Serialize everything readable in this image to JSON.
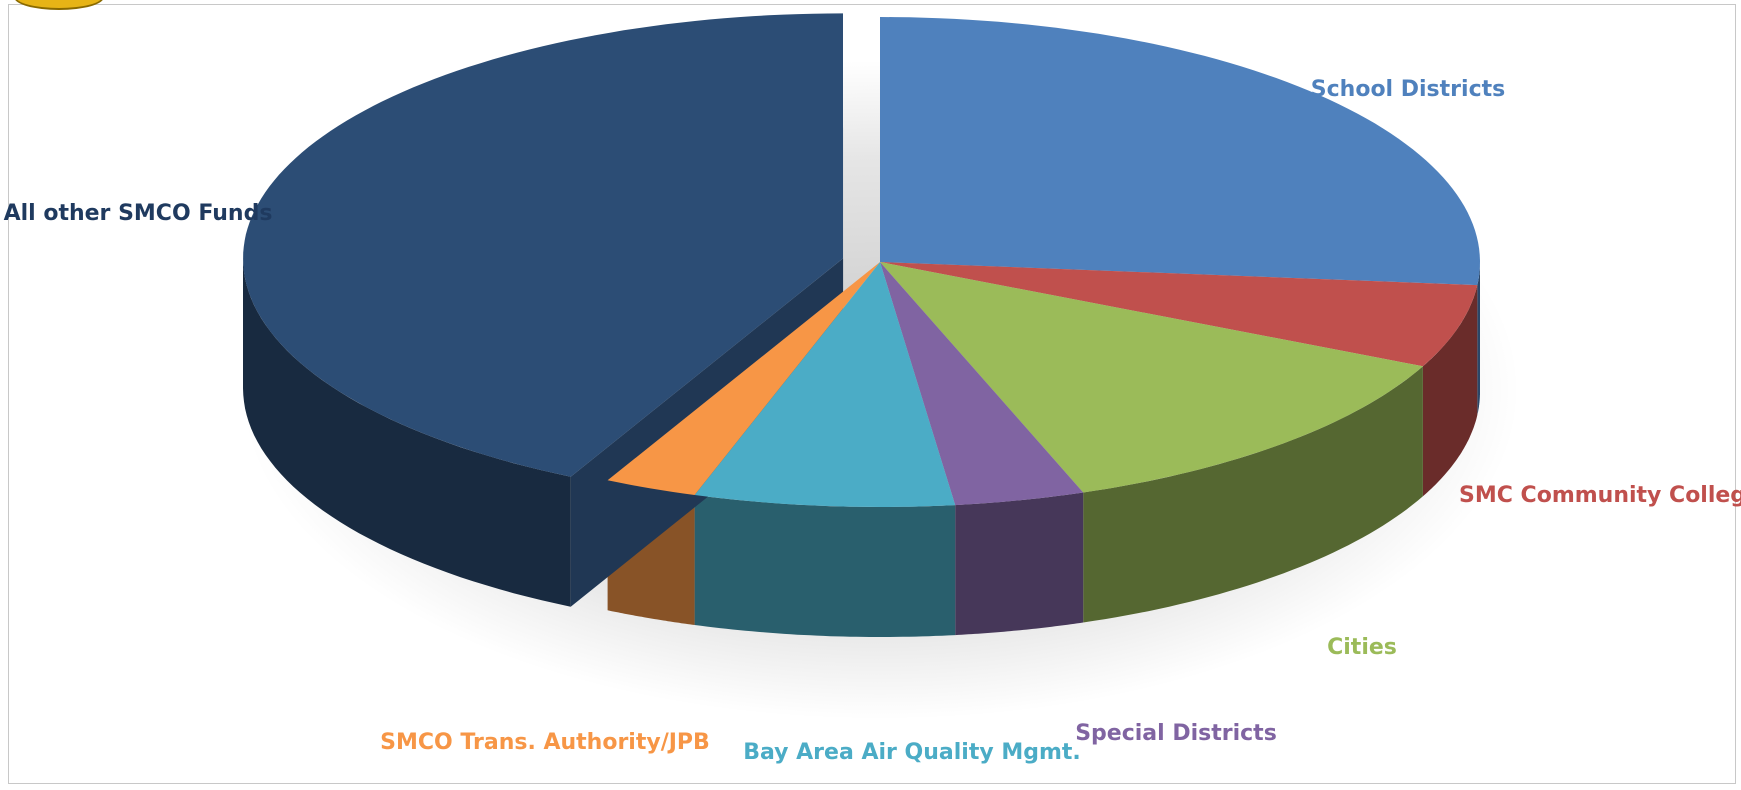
{
  "chart_data": {
    "type": "pie",
    "style": "3d-exploded",
    "title": "",
    "slices": [
      {
        "label": "School Districts",
        "value": 26.5,
        "color": "#4f81bd"
      },
      {
        "label": "SMC Community College",
        "value": 5.5,
        "color": "#c0504d"
      },
      {
        "label": "Cities",
        "value": 12.5,
        "color": "#9bbb59"
      },
      {
        "label": "Special Districts",
        "value": 3.5,
        "color": "#8064a2"
      },
      {
        "label": "Bay Area Air Quality Mgmt.",
        "value": 7.0,
        "color": "#4bacc6"
      },
      {
        "label": "SMCO Trans. Authority/JPB",
        "value": 2.5,
        "color": "#f79646"
      },
      {
        "label": "All other SMCO Funds",
        "value": 42.5,
        "color": "#2c4d75",
        "exploded": true
      }
    ]
  }
}
